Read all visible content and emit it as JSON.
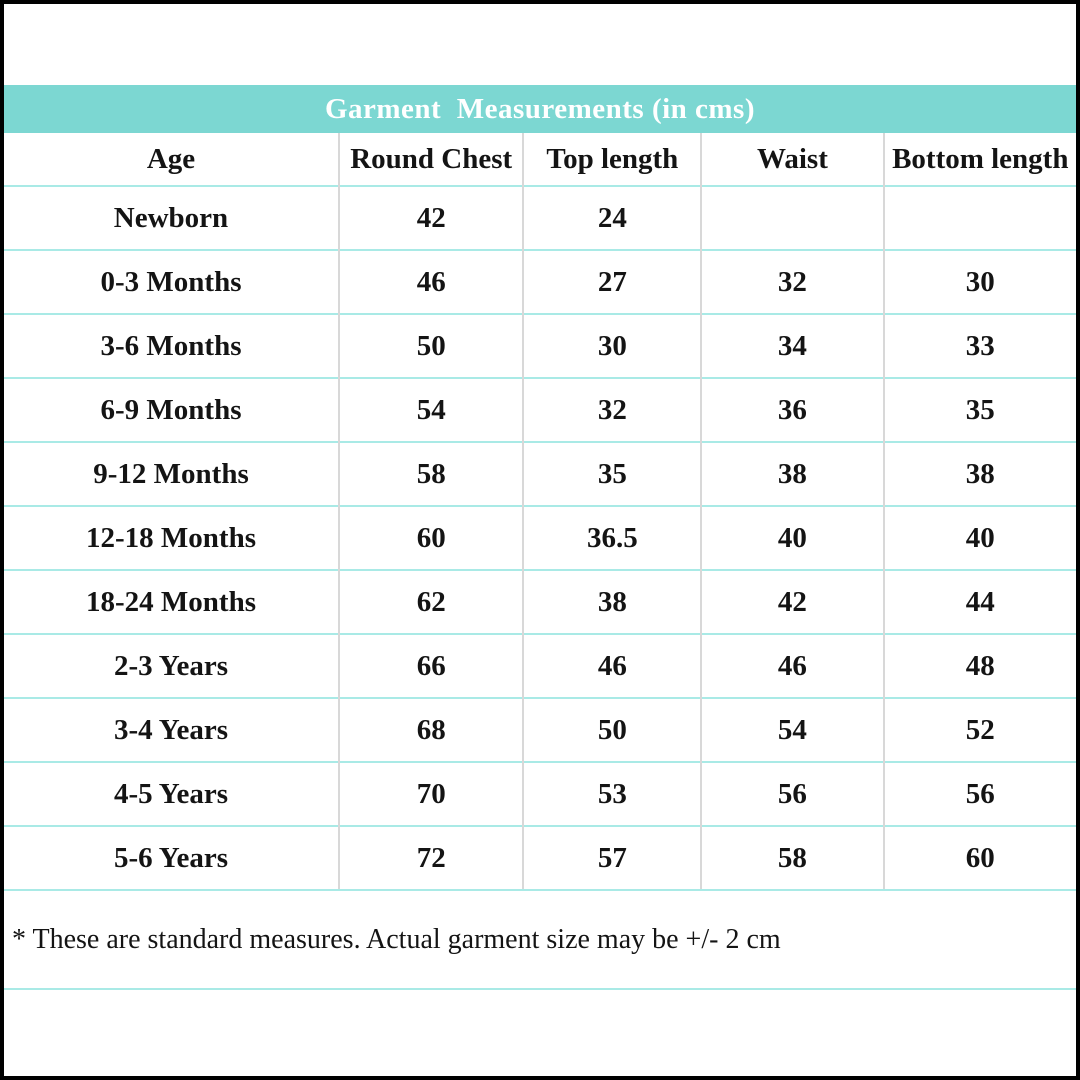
{
  "page": {
    "title": "Garment  Measurements (in cms)",
    "footnote": "* These are standard measures. Actual garment size may be +/- 2 cm"
  },
  "chart_data": {
    "type": "table",
    "title": "Garment  Measurements (in cms)",
    "unit": "cms",
    "columns": [
      "Age",
      "Round Chest",
      "Top length",
      "Waist",
      "Bottom length"
    ],
    "rows": [
      [
        "Newborn",
        "42",
        "24",
        "",
        ""
      ],
      [
        "0-3 Months",
        "46",
        "27",
        "32",
        "30"
      ],
      [
        "3-6 Months",
        "50",
        "30",
        "34",
        "33"
      ],
      [
        "6-9 Months",
        "54",
        "32",
        "36",
        "35"
      ],
      [
        "9-12 Months",
        "58",
        "35",
        "38",
        "38"
      ],
      [
        "12-18 Months",
        "60",
        "36.5",
        "40",
        "40"
      ],
      [
        "18-24 Months",
        "62",
        "38",
        "42",
        "44"
      ],
      [
        "2-3 Years",
        "66",
        "46",
        "46",
        "48"
      ],
      [
        "3-4 Years",
        "68",
        "50",
        "54",
        "52"
      ],
      [
        "4-5 Years",
        "70",
        "53",
        "56",
        "56"
      ],
      [
        "5-6 Years",
        "72",
        "57",
        "58",
        "60"
      ]
    ],
    "footnote": "* These are standard measures. Actual garment size may be +/- 2 cm"
  },
  "colors": {
    "header_bg": "#7cd7d2",
    "header_text": "#ffffff",
    "row_divider": "#a9eae6",
    "column_divider": "#d8d8d8",
    "text": "#141414",
    "border": "#000000",
    "background": "#ffffff"
  }
}
